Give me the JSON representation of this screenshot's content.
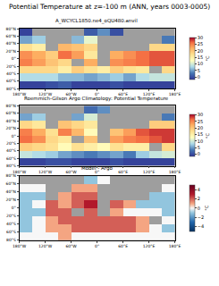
{
  "title": "Potential Temperature at z=-100 m (ANN, years 0003-0005)",
  "chart_data": [
    {
      "type": "heatmap",
      "title": "A_WCYCL1850.ne4_oQU480.anvil",
      "x": [
        -165,
        -135,
        -105,
        -75,
        -45,
        -15,
        15,
        45,
        75,
        105,
        135,
        165
      ],
      "y": [
        -70,
        -50,
        -30,
        -10,
        10,
        30,
        50,
        70
      ],
      "z": [
        [
          -1,
          -1,
          0,
          1,
          -1,
          -1,
          -1,
          0,
          -1,
          -1,
          -1,
          -1
        ],
        [
          8,
          8,
          8,
          6,
          6,
          5,
          6,
          7,
          5,
          8,
          9,
          9
        ],
        [
          18,
          18,
          18,
          15,
          19,
          17,
          15,
          19,
          17,
          16,
          null,
          18
        ],
        [
          25,
          23,
          20,
          18,
          null,
          22,
          null,
          24,
          25,
          26,
          27,
          27
        ],
        [
          24,
          22,
          19,
          26,
          23,
          16,
          null,
          22,
          24,
          26,
          27,
          27
        ],
        [
          17,
          15,
          null,
          21,
          20,
          18,
          null,
          null,
          null,
          null,
          18,
          18
        ],
        [
          5,
          7,
          null,
          null,
          6,
          11,
          null,
          null,
          null,
          null,
          null,
          3
        ],
        [
          -1,
          null,
          null,
          null,
          null,
          1,
          4,
          0,
          null,
          null,
          null,
          null
        ]
      ],
      "xlim": [
        -180,
        180
      ],
      "xticks": [
        {
          "value": -180,
          "label": "180°W"
        },
        {
          "value": -120,
          "label": "120°W"
        },
        {
          "value": -60,
          "label": "60°W"
        },
        {
          "value": 0,
          "label": "0°"
        },
        {
          "value": 60,
          "label": "60°E"
        },
        {
          "value": 120,
          "label": "120°E"
        },
        {
          "value": 180,
          "label": "180°E"
        }
      ],
      "ylim": [
        -80,
        80
      ],
      "yticks": [
        {
          "value": -80,
          "label": "80°S"
        },
        {
          "value": -60,
          "label": "60°S"
        },
        {
          "value": -40,
          "label": "40°S"
        },
        {
          "value": -20,
          "label": "20°S"
        },
        {
          "value": 0,
          "label": "0°"
        },
        {
          "value": 20,
          "label": "20°N"
        },
        {
          "value": 40,
          "label": "40°N"
        },
        {
          "value": 60,
          "label": "60°N"
        },
        {
          "value": 80,
          "label": "80°N"
        }
      ],
      "colorbar": {
        "range": [
          -2,
          30
        ],
        "ticks": [
          0,
          5,
          10,
          15,
          20,
          25,
          30
        ],
        "label": "°C"
      }
    },
    {
      "type": "heatmap",
      "title": "Roemmich-Gilson Argo Climatology: Potential Temperature",
      "x": [
        -165,
        -135,
        -105,
        -75,
        -45,
        -15,
        15,
        45,
        75,
        105,
        135,
        165
      ],
      "y": [
        -70,
        -50,
        -30,
        -10,
        10,
        30,
        50,
        70
      ],
      "z": [
        [
          -1,
          -1,
          0,
          0,
          -1,
          -1,
          -1,
          0,
          -1,
          -1,
          -1,
          -1
        ],
        [
          9,
          8,
          7,
          5,
          4,
          3,
          4,
          5,
          3,
          7,
          9,
          10
        ],
        [
          19,
          18,
          17,
          13,
          17,
          15,
          13,
          17,
          15,
          15,
          null,
          18
        ],
        [
          26,
          24,
          18,
          16,
          null,
          20,
          null,
          23,
          25,
          26,
          27,
          28
        ],
        [
          25,
          22,
          17,
          25,
          21,
          13,
          null,
          20,
          23,
          27,
          28,
          28
        ],
        [
          18,
          16,
          null,
          20,
          18,
          16,
          null,
          null,
          null,
          null,
          19,
          19
        ],
        [
          5,
          7,
          null,
          null,
          5,
          10,
          null,
          null,
          null,
          null,
          null,
          3
        ],
        [
          null,
          null,
          null,
          null,
          null,
          2,
          4,
          null,
          null,
          null,
          null,
          null
        ]
      ],
      "xlim": [
        -180,
        180
      ],
      "xticks": [
        {
          "value": -180,
          "label": "180°W"
        },
        {
          "value": -120,
          "label": "120°W"
        },
        {
          "value": -60,
          "label": "60°W"
        },
        {
          "value": 0,
          "label": "0°"
        },
        {
          "value": 60,
          "label": "60°E"
        },
        {
          "value": 120,
          "label": "120°E"
        },
        {
          "value": 180,
          "label": "180°E"
        }
      ],
      "ylim": [
        -80,
        80
      ],
      "yticks": [
        {
          "value": -80,
          "label": "80°S"
        },
        {
          "value": -60,
          "label": "60°S"
        },
        {
          "value": -40,
          "label": "40°S"
        },
        {
          "value": -20,
          "label": "20°S"
        },
        {
          "value": 0,
          "label": "0°"
        },
        {
          "value": 20,
          "label": "20°N"
        },
        {
          "value": 40,
          "label": "40°N"
        },
        {
          "value": 60,
          "label": "60°N"
        },
        {
          "value": 80,
          "label": "80°N"
        }
      ],
      "colorbar": {
        "range": [
          -2,
          30
        ],
        "ticks": [
          0,
          5,
          10,
          15,
          20,
          25,
          30
        ],
        "label": "°C"
      }
    },
    {
      "type": "heatmap",
      "title": "Model - Argo",
      "x": [
        -165,
        -135,
        -105,
        -75,
        -45,
        -15,
        15,
        45,
        75,
        105,
        135,
        165
      ],
      "y": [
        -70,
        -50,
        -30,
        -10,
        10,
        30,
        50,
        70
      ],
      "z": [
        [
          0,
          0,
          0,
          1,
          0,
          0,
          0,
          0,
          0,
          0,
          0,
          0
        ],
        [
          -1,
          0,
          1,
          1,
          2,
          2,
          2,
          2,
          2,
          1,
          0,
          -1
        ],
        [
          -1,
          0,
          1,
          2,
          2,
          2,
          2,
          2,
          2,
          1,
          null,
          0
        ],
        [
          -1,
          -1,
          2,
          2,
          null,
          2,
          null,
          1,
          0,
          0,
          0,
          -1
        ],
        [
          -1,
          0,
          2,
          1,
          2,
          3,
          null,
          2,
          1,
          -1,
          -1,
          -1
        ],
        [
          -1,
          -1,
          null,
          1,
          2,
          2,
          null,
          null,
          null,
          null,
          -1,
          -1
        ],
        [
          0,
          0,
          null,
          null,
          1,
          1,
          null,
          null,
          null,
          null,
          null,
          0
        ],
        [
          null,
          null,
          null,
          null,
          null,
          -1,
          0,
          null,
          null,
          null,
          null,
          null
        ]
      ],
      "xlim": [
        -180,
        180
      ],
      "xticks": [
        {
          "value": -180,
          "label": "180°W"
        },
        {
          "value": -120,
          "label": "120°W"
        },
        {
          "value": -60,
          "label": "60°W"
        },
        {
          "value": 0,
          "label": "0°"
        },
        {
          "value": 60,
          "label": "60°E"
        },
        {
          "value": 120,
          "label": "120°E"
        },
        {
          "value": 180,
          "label": "180°E"
        }
      ],
      "ylim": [
        -80,
        80
      ],
      "yticks": [
        {
          "value": -80,
          "label": "80°S"
        },
        {
          "value": -60,
          "label": "60°S"
        },
        {
          "value": -40,
          "label": "40°S"
        },
        {
          "value": -20,
          "label": "20°S"
        },
        {
          "value": 0,
          "label": "0°"
        },
        {
          "value": 20,
          "label": "20°N"
        },
        {
          "value": 40,
          "label": "40°N"
        },
        {
          "value": 60,
          "label": "60°N"
        },
        {
          "value": 80,
          "label": "80°N"
        }
      ],
      "colorbar": {
        "range": [
          -5,
          5
        ],
        "ticks": [
          -4,
          -2,
          0,
          2,
          4
        ],
        "label": "°C"
      }
    }
  ]
}
